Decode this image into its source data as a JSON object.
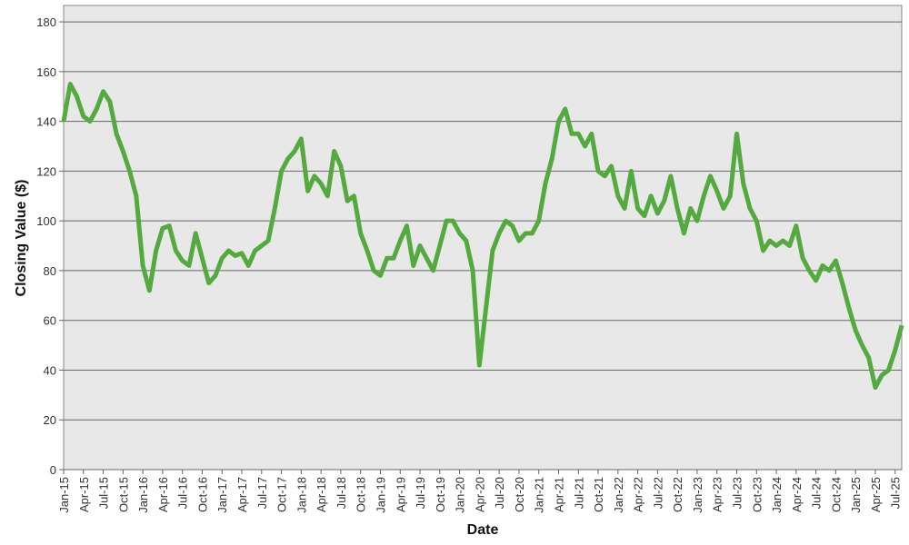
{
  "chart_data": {
    "type": "line",
    "x_label": "Date",
    "y_label": "Closing Value ($)",
    "x": [
      "2015-01",
      "2015-02",
      "2015-03",
      "2015-04",
      "2015-05",
      "2015-06",
      "2015-07",
      "2015-08",
      "2015-09",
      "2015-10",
      "2015-11",
      "2015-12",
      "2016-01",
      "2016-02",
      "2016-03",
      "2016-04",
      "2016-05",
      "2016-06",
      "2016-07",
      "2016-08",
      "2016-09",
      "2016-10",
      "2016-11",
      "2016-12",
      "2017-01",
      "2017-02",
      "2017-03",
      "2017-04",
      "2017-05",
      "2017-06",
      "2017-07",
      "2017-08",
      "2017-09",
      "2017-10",
      "2017-11",
      "2017-12",
      "2018-01",
      "2018-02",
      "2018-03",
      "2018-04",
      "2018-05",
      "2018-06",
      "2018-07",
      "2018-08",
      "2018-09",
      "2018-10",
      "2018-11",
      "2018-12",
      "2019-01",
      "2019-02",
      "2019-03",
      "2019-04",
      "2019-05",
      "2019-06",
      "2019-07",
      "2019-08",
      "2019-09",
      "2019-10",
      "2019-11",
      "2019-12",
      "2020-01",
      "2020-02",
      "2020-03",
      "2020-04",
      "2020-05",
      "2020-06",
      "2020-07",
      "2020-08",
      "2020-09",
      "2020-10",
      "2020-11",
      "2020-12",
      "2021-01",
      "2021-02",
      "2021-03",
      "2021-04",
      "2021-05",
      "2021-06",
      "2021-07",
      "2021-08",
      "2021-09",
      "2021-10",
      "2021-11",
      "2021-12",
      "2022-01",
      "2022-02",
      "2022-03",
      "2022-04",
      "2022-05",
      "2022-06",
      "2022-07",
      "2022-08",
      "2022-09",
      "2022-10",
      "2022-11",
      "2022-12",
      "2023-01",
      "2023-02",
      "2023-03",
      "2023-04",
      "2023-05",
      "2023-06",
      "2023-07",
      "2023-08",
      "2023-09",
      "2023-10",
      "2023-11",
      "2023-12",
      "2024-01",
      "2024-02",
      "2024-03",
      "2024-04",
      "2024-05",
      "2024-06",
      "2024-07",
      "2024-08",
      "2024-09",
      "2024-10",
      "2024-11",
      "2024-12",
      "2025-01",
      "2025-02",
      "2025-03",
      "2025-04",
      "2025-05",
      "2025-06",
      "2025-07",
      "2025-08"
    ],
    "series": [
      {
        "name": "Closing Value",
        "color": "#55aa3f",
        "values": [
          140,
          155,
          150,
          142,
          140,
          145,
          152,
          148,
          135,
          128,
          120,
          110,
          82,
          72,
          88,
          97,
          98,
          88,
          84,
          82,
          95,
          85,
          75,
          78,
          85,
          88,
          86,
          87,
          82,
          88,
          90,
          92,
          105,
          120,
          125,
          128,
          133,
          112,
          118,
          115,
          110,
          128,
          122,
          108,
          110,
          95,
          88,
          80,
          78,
          85,
          85,
          92,
          98,
          82,
          90,
          85,
          80,
          90,
          100,
          100,
          95,
          92,
          80,
          42,
          65,
          88,
          95,
          100,
          98,
          92,
          95,
          95,
          100,
          115,
          125,
          140,
          145,
          135,
          135,
          130,
          135,
          120,
          118,
          122,
          110,
          105,
          120,
          105,
          102,
          110,
          103,
          108,
          118,
          105,
          95,
          105,
          100,
          110,
          118,
          112,
          105,
          110,
          135,
          115,
          105,
          100,
          88,
          92,
          90,
          92,
          90,
          98,
          85,
          80,
          76,
          82,
          80,
          84,
          75,
          65,
          56,
          50,
          45,
          33,
          38,
          40,
          48,
          58
        ]
      }
    ],
    "xlim": [
      "2015-01",
      "2025-08"
    ],
    "xticks": [
      {
        "value": "2015-01",
        "label": "Jan-15"
      },
      {
        "value": "2015-04",
        "label": "Apr-15"
      },
      {
        "value": "2015-07",
        "label": "Jul-15"
      },
      {
        "value": "2015-10",
        "label": "Oct-15"
      },
      {
        "value": "2016-01",
        "label": "Jan-16"
      },
      {
        "value": "2016-04",
        "label": "Apr-16"
      },
      {
        "value": "2016-07",
        "label": "Jul-16"
      },
      {
        "value": "2016-10",
        "label": "Oct-16"
      },
      {
        "value": "2017-01",
        "label": "Jan-17"
      },
      {
        "value": "2017-04",
        "label": "Apr-17"
      },
      {
        "value": "2017-07",
        "label": "Jul-17"
      },
      {
        "value": "2017-10",
        "label": "Oct-17"
      },
      {
        "value": "2018-01",
        "label": "Jan-18"
      },
      {
        "value": "2018-04",
        "label": "Apr-18"
      },
      {
        "value": "2018-07",
        "label": "Jul-18"
      },
      {
        "value": "2018-10",
        "label": "Oct-18"
      },
      {
        "value": "2019-01",
        "label": "Jan-19"
      },
      {
        "value": "2019-04",
        "label": "Apr-19"
      },
      {
        "value": "2019-07",
        "label": "Jul-19"
      },
      {
        "value": "2019-10",
        "label": "Oct-19"
      },
      {
        "value": "2020-01",
        "label": "Jan-20"
      },
      {
        "value": "2020-04",
        "label": "Apr-20"
      },
      {
        "value": "2020-07",
        "label": "Jul-20"
      },
      {
        "value": "2020-10",
        "label": "Oct-20"
      },
      {
        "value": "2021-01",
        "label": "Jan-21"
      },
      {
        "value": "2021-04",
        "label": "Apr-21"
      },
      {
        "value": "2021-07",
        "label": "Jul-21"
      },
      {
        "value": "2021-10",
        "label": "Oct-21"
      },
      {
        "value": "2022-01",
        "label": "Jan-22"
      },
      {
        "value": "2022-04",
        "label": "Apr-22"
      },
      {
        "value": "2022-07",
        "label": "Jul-22"
      },
      {
        "value": "2022-10",
        "label": "Oct-22"
      },
      {
        "value": "2023-01",
        "label": "Jan-23"
      },
      {
        "value": "2023-04",
        "label": "Apr-23"
      },
      {
        "value": "2023-07",
        "label": "Jul-23"
      },
      {
        "value": "2023-10",
        "label": "Oct-23"
      },
      {
        "value": "2024-01",
        "label": "Jan-24"
      },
      {
        "value": "2024-04",
        "label": "Apr-24"
      },
      {
        "value": "2024-07",
        "label": "Jul-24"
      },
      {
        "value": "2024-10",
        "label": "Oct-24"
      },
      {
        "value": "2025-01",
        "label": "Jan-25"
      },
      {
        "value": "2025-04",
        "label": "Apr-25"
      },
      {
        "value": "2025-07",
        "label": "Jul-25"
      }
    ],
    "ylim": [
      0,
      186.6
    ],
    "yticks": [
      0,
      20,
      40,
      60,
      80,
      100,
      120,
      140,
      160,
      180
    ],
    "grid": true
  }
}
